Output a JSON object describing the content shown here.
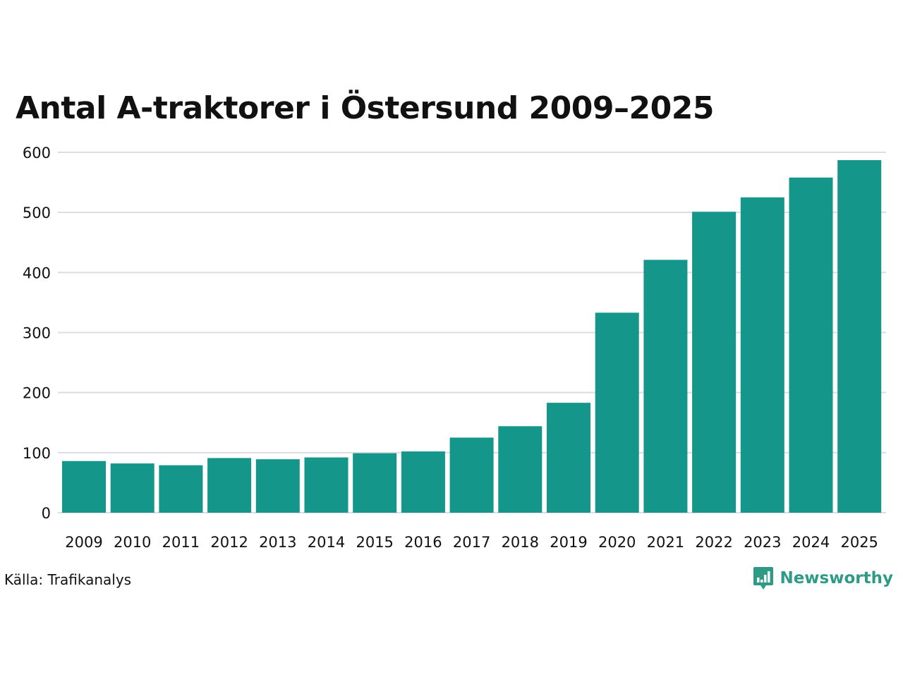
{
  "chart_data": {
    "type": "bar",
    "title": "Antal A-traktorer i Östersund 2009–2025",
    "xlabel": "",
    "ylabel": "",
    "categories": [
      "2009",
      "2010",
      "2011",
      "2012",
      "2013",
      "2014",
      "2015",
      "2016",
      "2017",
      "2018",
      "2019",
      "2020",
      "2021",
      "2022",
      "2023",
      "2024",
      "2025"
    ],
    "values": [
      86,
      82,
      79,
      91,
      89,
      92,
      99,
      102,
      125,
      144,
      183,
      333,
      421,
      501,
      525,
      558,
      587
    ],
    "ylim": [
      0,
      600
    ],
    "yticks": [
      "0",
      "100",
      "200",
      "300",
      "400",
      "500",
      "600"
    ],
    "grid": true,
    "legend": "none",
    "colors": {
      "bar": "#14968a",
      "grid": "#dcdce3",
      "brand": "#2f9b87"
    }
  },
  "footer": {
    "source": "Källa: Trafikanalys",
    "brand": "Newsworthy"
  },
  "icons": {
    "brand_logo": "newsworthy-logo-icon"
  }
}
